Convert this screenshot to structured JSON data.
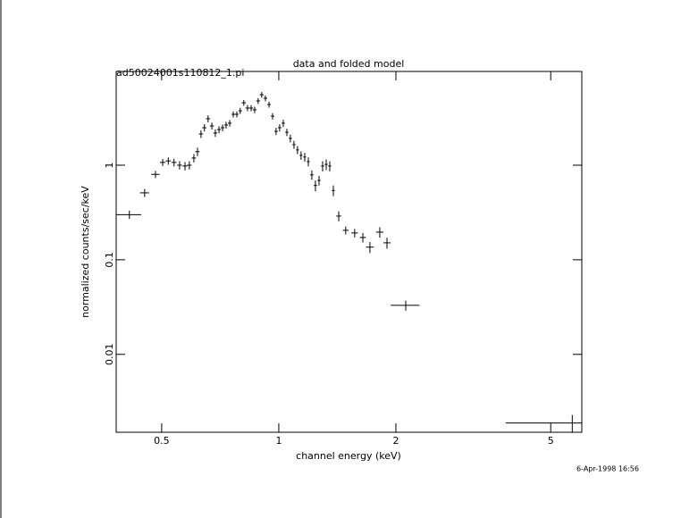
{
  "chart_data": {
    "type": "scatter",
    "title": "data and folded model",
    "subtitle": "ad50024001s110812_1.pi",
    "x_label": "channel energy (keV)",
    "y_label": "normalized counts/sec/keV",
    "footer": "6-Apr-1998 16:56",
    "xscale": "log",
    "yscale": "log",
    "xlim": [
      0.382,
      6.01
    ],
    "ylim": [
      0.0015,
      9.8
    ],
    "xticks": [
      0.5,
      1,
      2,
      5
    ],
    "yticks": [
      0.01,
      0.1,
      1
    ],
    "color": "#000000",
    "x": [
      0.413,
      0.452,
      0.482,
      0.503,
      0.52,
      0.538,
      0.556,
      0.574,
      0.589,
      0.605,
      0.618,
      0.631,
      0.644,
      0.658,
      0.673,
      0.687,
      0.702,
      0.717,
      0.732,
      0.748,
      0.764,
      0.78,
      0.796,
      0.813,
      0.831,
      0.849,
      0.867,
      0.885,
      0.904,
      0.924,
      0.944,
      0.964,
      0.984,
      1.005,
      1.027,
      1.049,
      1.071,
      1.094,
      1.117,
      1.141,
      1.166,
      1.191,
      1.216,
      1.242,
      1.269,
      1.296,
      1.324,
      1.352,
      1.381,
      1.426,
      1.486,
      1.567,
      1.645,
      1.715,
      1.818,
      1.897,
      2.12,
      5.68
    ],
    "values": [
      0.3,
      0.51,
      0.8,
      1.07,
      1.11,
      1.07,
      1.0,
      0.98,
      1.0,
      1.19,
      1.39,
      2.14,
      2.49,
      3.1,
      2.6,
      2.19,
      2.38,
      2.49,
      2.66,
      2.78,
      3.45,
      3.45,
      3.76,
      4.57,
      4.02,
      4.02,
      3.85,
      4.78,
      5.56,
      5.1,
      4.38,
      3.3,
      2.28,
      2.49,
      2.78,
      2.23,
      1.92,
      1.65,
      1.45,
      1.27,
      1.22,
      1.09,
      0.79,
      0.61,
      0.69,
      0.98,
      1.02,
      0.98,
      0.54,
      0.29,
      0.205,
      0.192,
      0.172,
      0.136,
      0.196,
      0.151,
      0.033,
      0.00188
    ],
    "xerr": [
      0.03,
      0.012,
      0.012,
      0.008,
      0.008,
      0.008,
      0.008,
      0.008,
      0.008,
      0.008,
      0.008,
      0.008,
      0.008,
      0.008,
      0.008,
      0.008,
      0.008,
      0.008,
      0.008,
      0.008,
      0.008,
      0.008,
      0.008,
      0.01,
      0.01,
      0.01,
      0.01,
      0.01,
      0.01,
      0.01,
      0.01,
      0.01,
      0.01,
      0.01,
      0.01,
      0.01,
      0.01,
      0.01,
      0.01,
      0.01,
      0.01,
      0.01,
      0.012,
      0.012,
      0.012,
      0.012,
      0.012,
      0.012,
      0.012,
      0.02,
      0.025,
      0.03,
      0.03,
      0.04,
      0.04,
      0.04,
      0.18,
      1.85
    ],
    "yerr": [
      0.03,
      0.05,
      0.07,
      0.09,
      0.1,
      0.1,
      0.1,
      0.1,
      0.1,
      0.12,
      0.14,
      0.2,
      0.22,
      0.26,
      0.22,
      0.2,
      0.2,
      0.2,
      0.22,
      0.22,
      0.25,
      0.25,
      0.28,
      0.32,
      0.3,
      0.3,
      0.3,
      0.34,
      0.38,
      0.36,
      0.32,
      0.26,
      0.2,
      0.22,
      0.24,
      0.2,
      0.18,
      0.16,
      0.14,
      0.13,
      0.13,
      0.12,
      0.09,
      0.08,
      0.08,
      0.12,
      0.13,
      0.12,
      0.07,
      0.035,
      0.02,
      0.02,
      0.02,
      0.018,
      0.025,
      0.02,
      0.004,
      0.0004
    ]
  }
}
